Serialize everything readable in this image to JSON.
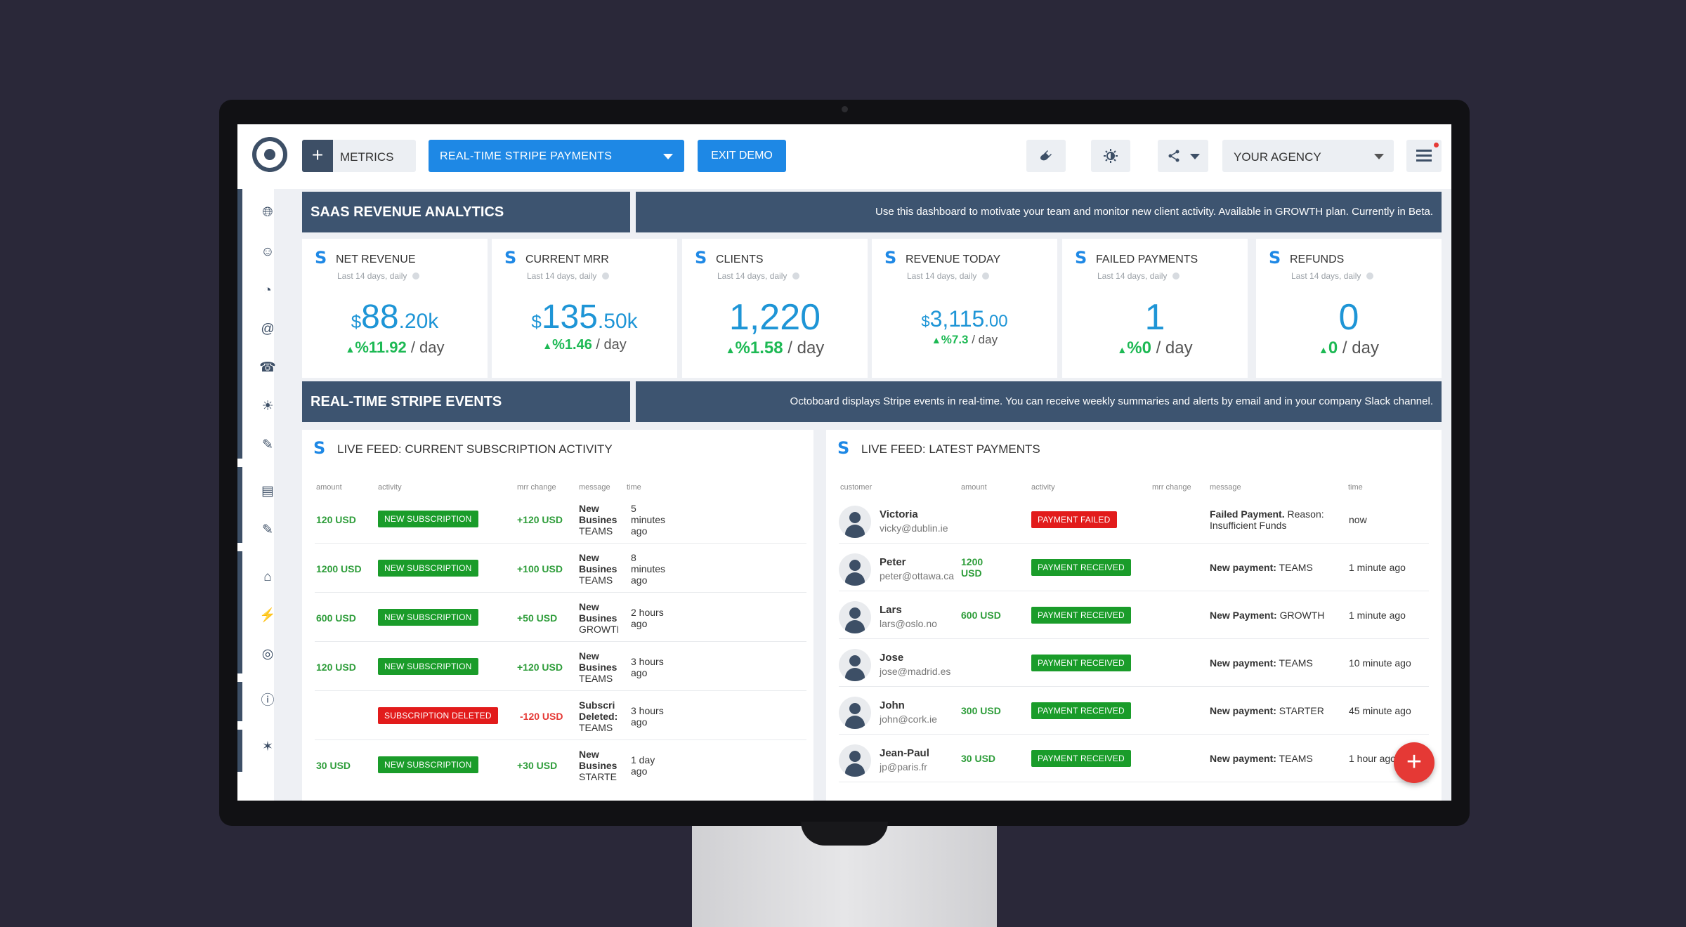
{
  "topbar": {
    "metrics_label": "METRICS",
    "dashboard_select": "REAL-TIME STRIPE PAYMENTS",
    "exit_demo": "EXIT DEMO",
    "agency_select": "YOUR AGENCY"
  },
  "sections": {
    "revenue_title": "SAAS REVENUE ANALYTICS",
    "revenue_note": "Use this dashboard to motivate your team and monitor new client activity. Available in GROWTH plan. Currently in Beta.",
    "events_title": "REAL-TIME STRIPE EVENTS",
    "events_note": "Octoboard displays Stripe events in real-time. You can receive weekly summaries and alerts by email and in your company Slack channel."
  },
  "tiles": [
    {
      "title": "NET REVENUE",
      "sub": "Last 14 days, daily",
      "cur": "$",
      "big": "88",
      "dec": ".20k",
      "change": "%11.92",
      "unit": " / day"
    },
    {
      "title": "CURRENT MRR",
      "sub": "Last 14 days, daily",
      "cur": "$",
      "big": "135",
      "dec": ".50k",
      "change": "%1.46",
      "unit": " / day"
    },
    {
      "title": "CLIENTS",
      "sub": "Last 14 days, daily",
      "cur": "",
      "big": "1,220",
      "dec": "",
      "change": "%1.58",
      "unit": " / day"
    },
    {
      "title": "REVENUE TODAY",
      "sub": "Last 14 days, daily",
      "cur": "$",
      "big": "3,115",
      "dec": ".00",
      "change": "%7.3",
      "unit": " / day"
    },
    {
      "title": "FAILED PAYMENTS",
      "sub": "Last 14 days, daily",
      "cur": "",
      "big": "1",
      "dec": "",
      "change": "%0",
      "unit": " / day"
    },
    {
      "title": "REFUNDS",
      "sub": "Last 14 days, daily",
      "cur": "",
      "big": "0",
      "dec": "",
      "change": "0",
      "unit": " / day"
    }
  ],
  "subs_feed": {
    "title": "LIVE FEED: CURRENT SUBSCRIPTION ACTIVITY",
    "headers": [
      "amount",
      "activity",
      "mrr change",
      "message",
      "time"
    ],
    "rows": [
      {
        "amount": "120 USD",
        "activity": "NEW SUBSCRIPTION",
        "mrr": "+120 USD",
        "msg": [
          "New",
          "Busines",
          "TEAMS"
        ],
        "time": [
          "5",
          "minutes",
          "ago"
        ]
      },
      {
        "amount": "1200 USD",
        "activity": "NEW SUBSCRIPTION",
        "mrr": "+100 USD",
        "msg": [
          "New",
          "Busines",
          "TEAMS"
        ],
        "time": [
          "8",
          "minutes",
          "ago"
        ]
      },
      {
        "amount": "600 USD",
        "activity": "NEW SUBSCRIPTION",
        "mrr": "+50 USD",
        "msg": [
          "New",
          "Busines",
          "GROWTI"
        ],
        "time": [
          "2 hours",
          "ago",
          ""
        ]
      },
      {
        "amount": "120 USD",
        "activity": "NEW SUBSCRIPTION",
        "mrr": "+120 USD",
        "msg": [
          "New",
          "Busines",
          "TEAMS"
        ],
        "time": [
          "3 hours",
          "ago",
          ""
        ]
      },
      {
        "amount": "",
        "activity": "SUBSCRIPTION DELETED",
        "mrr": "-120 USD",
        "msg": [
          "Subscri",
          "Deleted:",
          "TEAMS"
        ],
        "time": [
          "3 hours",
          "ago",
          ""
        ]
      },
      {
        "amount": "30 USD",
        "activity": "NEW SUBSCRIPTION",
        "mrr": "+30 USD",
        "msg": [
          "New",
          "Busines",
          "STARTE"
        ],
        "time": [
          "1 day",
          "ago",
          ""
        ]
      }
    ]
  },
  "payments_feed": {
    "title": "LIVE FEED: LATEST PAYMENTS",
    "headers": [
      "customer",
      "amount",
      "activity",
      "mrr change",
      "message",
      "time"
    ],
    "rows": [
      {
        "name": "Victoria",
        "email": "vicky@dublin.ie",
        "amount": [
          "",
          ""
        ],
        "activity": "PAYMENT FAILED",
        "msg_b": "Failed Payment.",
        "msg": " Reason: Insufficient Funds",
        "time": "now"
      },
      {
        "name": "Peter",
        "email": "peter@ottawa.ca",
        "amount": [
          "1200",
          "USD"
        ],
        "activity": "PAYMENT RECEIVED",
        "msg_b": "New payment:",
        "msg": " TEAMS",
        "time": "1 minute ago"
      },
      {
        "name": "Lars",
        "email": "lars@oslo.no",
        "amount": [
          "600 USD",
          ""
        ],
        "activity": "PAYMENT RECEIVED",
        "msg_b": "New Payment:",
        "msg": " GROWTH",
        "time": "1 minute ago"
      },
      {
        "name": "Jose",
        "email": "jose@madrid.es",
        "amount": [
          "",
          ""
        ],
        "activity": "PAYMENT RECEIVED",
        "msg_b": "New payment:",
        "msg": " TEAMS",
        "time": "10 minute ago"
      },
      {
        "name": "John",
        "email": "john@cork.ie",
        "amount": [
          "300 USD",
          ""
        ],
        "activity": "PAYMENT RECEIVED",
        "msg_b": "New payment:",
        "msg": " STARTER",
        "time": "45 minute ago"
      },
      {
        "name": "Jean-Paul",
        "email": "jp@paris.fr",
        "amount": [
          "30 USD",
          ""
        ],
        "activity": "PAYMENT RECEIVED",
        "msg_b": "New payment:",
        "msg": " TEAMS",
        "time": "1 hour ago"
      }
    ]
  },
  "colors": {
    "accent": "#1e88e5",
    "header": "#3d5470",
    "success": "#1a9c2a",
    "danger": "#e21b1b",
    "kpi": "#1e95d6"
  },
  "icons": {
    "topbar": [
      "plug-icon",
      "brightness-icon",
      "share-icon",
      "hamburger-icon"
    ],
    "sidebar": [
      "globe-icon",
      "users-icon",
      "pie-chart-icon",
      "at-icon",
      "phone-icon",
      "lightbulb-icon",
      "edit-icon",
      "clipboard-icon",
      "pencil-icon",
      "bank-icon",
      "plug-icon",
      "user-circle-icon",
      "info-icon",
      "bug-icon"
    ]
  }
}
